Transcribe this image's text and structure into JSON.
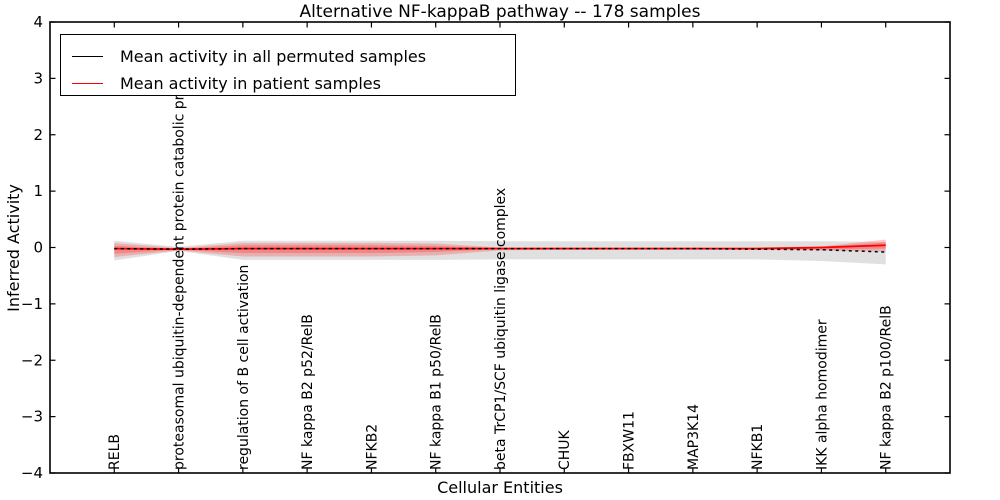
{
  "chart_data": {
    "type": "line",
    "title": "Alternative NF-kappaB pathway -- 178 samples",
    "xlabel": "Cellular Entities",
    "ylabel": "Inferred Activity",
    "ylim": [
      -4,
      4
    ],
    "yticks": [
      -4,
      -3,
      -2,
      -1,
      0,
      1,
      2,
      3,
      4
    ],
    "ytick_labels": [
      "−4",
      "−3",
      "−2",
      "−1",
      "0",
      "1",
      "2",
      "3",
      "4"
    ],
    "grid": false,
    "categories": [
      "RELB",
      "proteasomal ubiquitin-dependent protein catabolic pr",
      "regulation of B cell activation",
      "NF kappa B2 p52/RelB",
      "NFKB2",
      "NF kappa B1 p50/RelB",
      "beta TrCP1/SCF ubiquitin ligase complex",
      "CHUK",
      "FBXW11",
      "MAP3K14",
      "NFKB1",
      "IKK alpha homodimer",
      "NF kappa B2 p100/RelB"
    ],
    "series": [
      {
        "name": "Mean activity in all permuted samples",
        "color": "#000000",
        "line_style": "dashed",
        "values": [
          -0.02,
          -0.03,
          -0.02,
          -0.02,
          -0.02,
          -0.02,
          -0.02,
          -0.02,
          -0.02,
          -0.02,
          -0.03,
          -0.04,
          -0.08
        ],
        "band_hi": [
          0.12,
          0.01,
          0.12,
          0.12,
          0.12,
          0.12,
          0.11,
          0.11,
          0.11,
          0.11,
          0.11,
          0.11,
          0.1
        ],
        "band_lo": [
          -0.23,
          -0.06,
          -0.22,
          -0.22,
          -0.22,
          -0.22,
          -0.21,
          -0.21,
          -0.21,
          -0.21,
          -0.21,
          -0.24,
          -0.3
        ],
        "band_color": "#000000",
        "band_alpha": 0.12
      },
      {
        "name": "Mean activity in patient samples",
        "color": "#ff0000",
        "line_style": "solid",
        "values": [
          -0.02,
          -0.03,
          -0.02,
          -0.02,
          -0.02,
          -0.02,
          -0.02,
          -0.02,
          -0.02,
          -0.02,
          -0.02,
          0.0,
          0.04
        ],
        "band_hi": [
          0.08,
          -0.01,
          0.08,
          0.08,
          0.08,
          0.07,
          0.0,
          0.0,
          0.0,
          0.0,
          0.0,
          0.02,
          0.14
        ],
        "band_lo": [
          -0.17,
          -0.05,
          -0.16,
          -0.16,
          -0.16,
          -0.14,
          -0.05,
          -0.04,
          -0.04,
          -0.04,
          -0.04,
          -0.05,
          -0.07
        ],
        "band_color": "#ff3b3b",
        "band_alpha": 0.28,
        "inner_band_hi": [
          0.03,
          -0.02,
          0.04,
          0.04,
          0.04,
          0.03,
          -0.01,
          -0.01,
          -0.01,
          -0.01,
          -0.01,
          0.01,
          0.09
        ],
        "inner_band_lo": [
          -0.11,
          -0.04,
          -0.1,
          -0.1,
          -0.1,
          -0.08,
          -0.03,
          -0.03,
          -0.03,
          -0.03,
          -0.03,
          -0.04,
          -0.02
        ],
        "inner_band_alpha": 0.33
      }
    ],
    "legend": {
      "position": "upper left",
      "items": [
        {
          "label": "Mean activity in all permuted samples",
          "color": "#000000"
        },
        {
          "label": "Mean activity in patient samples",
          "color": "#ff0000"
        }
      ]
    }
  }
}
